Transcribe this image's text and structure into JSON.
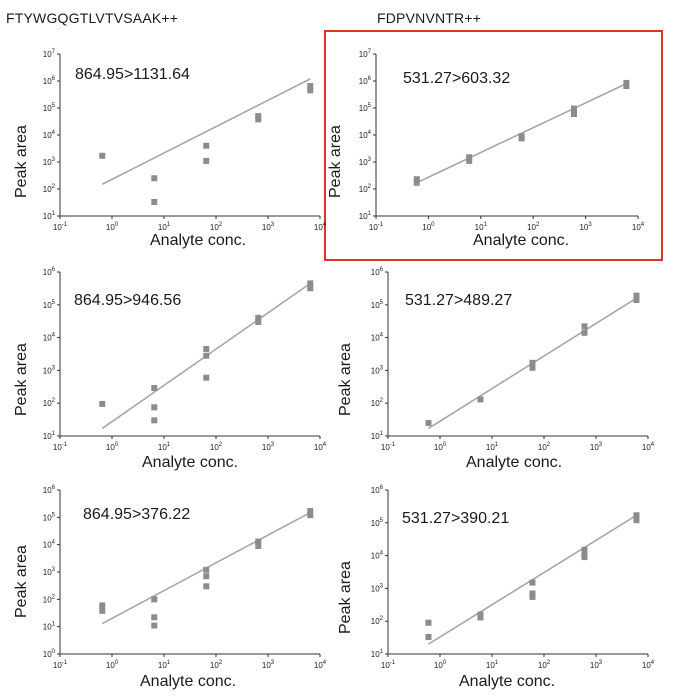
{
  "titles": {
    "left": "FTYWGQGTLVTVSAAK++",
    "right": "FDPVNVNTR++"
  },
  "highlight_color": "#d9352a",
  "mark_color": "#8c8c8c",
  "fit_color": "#a6a6a6",
  "chart_data": [
    {
      "type": "scatter",
      "panel": "top-left",
      "xscale": "log",
      "yscale": "log",
      "transition": "864.95>1131.64",
      "xlabel": "Analyte conc.",
      "ylabel": "Peak area",
      "xlim": [
        0.1,
        10000
      ],
      "ylim": [
        10,
        10000000
      ],
      "x_ticks": [
        "10-1",
        "100",
        "101",
        "102",
        "103",
        "104"
      ],
      "y_ticks": [
        "101",
        "102",
        "103",
        "104",
        "105",
        "106",
        "107"
      ],
      "points": [
        [
          0.65,
          1700
        ],
        [
          6.5,
          250
        ],
        [
          6.5,
          33
        ],
        [
          65,
          4000
        ],
        [
          65,
          1100
        ],
        [
          650,
          50000
        ],
        [
          650,
          38000
        ],
        [
          6500,
          650000
        ],
        [
          6500,
          450000
        ]
      ],
      "fit": [
        [
          0.65,
          150
        ],
        [
          6500,
          1200000
        ]
      ]
    },
    {
      "type": "scatter",
      "panel": "top-right",
      "highlighted": true,
      "xscale": "log",
      "yscale": "log",
      "transition": "531.27>603.32",
      "xlabel": "Analyte conc.",
      "ylabel": "Peak area",
      "xlim": [
        0.1,
        10000
      ],
      "ylim": [
        10,
        10000000
      ],
      "x_ticks": [
        "10-1",
        "100",
        "101",
        "102",
        "103",
        "104"
      ],
      "y_ticks": [
        "101",
        "102",
        "103",
        "104",
        "105",
        "106",
        "107"
      ],
      "points": [
        [
          0.6,
          230
        ],
        [
          0.6,
          170
        ],
        [
          6,
          1500
        ],
        [
          6,
          1100
        ],
        [
          60,
          9000
        ],
        [
          60,
          7500
        ],
        [
          600,
          95000
        ],
        [
          600,
          60000
        ],
        [
          6000,
          850000
        ],
        [
          6000,
          650000
        ]
      ],
      "fit": [
        [
          0.6,
          170
        ],
        [
          6000,
          800000
        ]
      ]
    },
    {
      "type": "scatter",
      "panel": "middle-left",
      "xscale": "log",
      "yscale": "log",
      "transition": "864.95>946.56",
      "xlabel": "Analyte conc.",
      "ylabel": "Peak area",
      "xlim": [
        0.1,
        10000
      ],
      "ylim": [
        10,
        1000000
      ],
      "x_ticks": [
        "10-1",
        "100",
        "101",
        "102",
        "103",
        "104"
      ],
      "y_ticks": [
        "101",
        "102",
        "103",
        "104",
        "105",
        "106"
      ],
      "points": [
        [
          0.65,
          95
        ],
        [
          6.5,
          290
        ],
        [
          6.5,
          75
        ],
        [
          6.5,
          30
        ],
        [
          65,
          4500
        ],
        [
          65,
          2800
        ],
        [
          65,
          600
        ],
        [
          650,
          40000
        ],
        [
          650,
          30000
        ],
        [
          6500,
          450000
        ],
        [
          6500,
          320000
        ]
      ],
      "fit": [
        [
          0.65,
          17
        ],
        [
          6500,
          450000
        ]
      ]
    },
    {
      "type": "scatter",
      "panel": "middle-right",
      "xscale": "log",
      "yscale": "log",
      "transition": "531.27>489.27",
      "xlabel": "Analyte conc.",
      "ylabel": "Peak area",
      "xlim": [
        0.1,
        10000
      ],
      "ylim": [
        10,
        1000000
      ],
      "x_ticks": [
        "10-1",
        "100",
        "101",
        "102",
        "103",
        "104"
      ],
      "y_ticks": [
        "101",
        "102",
        "103",
        "104",
        "105",
        "106"
      ],
      "points": [
        [
          0.6,
          25
        ],
        [
          6,
          130
        ],
        [
          60,
          1700
        ],
        [
          60,
          1200
        ],
        [
          600,
          22000
        ],
        [
          600,
          14000
        ],
        [
          6000,
          190000
        ],
        [
          6000,
          140000
        ]
      ],
      "fit": [
        [
          0.6,
          17
        ],
        [
          6000,
          160000
        ]
      ]
    },
    {
      "type": "scatter",
      "panel": "bottom-left",
      "xscale": "log",
      "yscale": "log",
      "transition": "864.95>376.22",
      "xlabel": "Analyte conc.",
      "ylabel": "Peak area",
      "xlim": [
        0.1,
        10000
      ],
      "ylim": [
        1,
        1000000
      ],
      "x_ticks": [
        "10-1",
        "100",
        "101",
        "102",
        "103",
        "104"
      ],
      "y_ticks": [
        "100",
        "101",
        "102",
        "103",
        "104",
        "105",
        "106"
      ],
      "points": [
        [
          0.65,
          60
        ],
        [
          0.65,
          38
        ],
        [
          6.5,
          100
        ],
        [
          6.5,
          22
        ],
        [
          6.5,
          11
        ],
        [
          65,
          1200
        ],
        [
          65,
          700
        ],
        [
          65,
          300
        ],
        [
          650,
          13000
        ],
        [
          650,
          9000
        ],
        [
          6500,
          170000
        ],
        [
          6500,
          120000
        ]
      ],
      "fit": [
        [
          0.65,
          13
        ],
        [
          6500,
          150000
        ]
      ]
    },
    {
      "type": "scatter",
      "panel": "bottom-right",
      "xscale": "log",
      "yscale": "log",
      "transition": "531.27>390.21",
      "xlabel": "Analyte conc.",
      "ylabel": "Peak area",
      "xlim": [
        0.1,
        10000
      ],
      "ylim": [
        10,
        1000000
      ],
      "x_ticks": [
        "10-1",
        "100",
        "101",
        "102",
        "103",
        "104"
      ],
      "y_ticks": [
        "101",
        "102",
        "103",
        "104",
        "105",
        "106"
      ],
      "points": [
        [
          0.6,
          90
        ],
        [
          0.6,
          33
        ],
        [
          6,
          160
        ],
        [
          6,
          130
        ],
        [
          60,
          1500
        ],
        [
          60,
          700
        ],
        [
          60,
          550
        ],
        [
          600,
          15000
        ],
        [
          600,
          11000
        ],
        [
          600,
          9000
        ],
        [
          6000,
          170000
        ],
        [
          6000,
          120000
        ]
      ],
      "fit": [
        [
          0.6,
          20
        ],
        [
          6000,
          170000
        ]
      ]
    }
  ]
}
